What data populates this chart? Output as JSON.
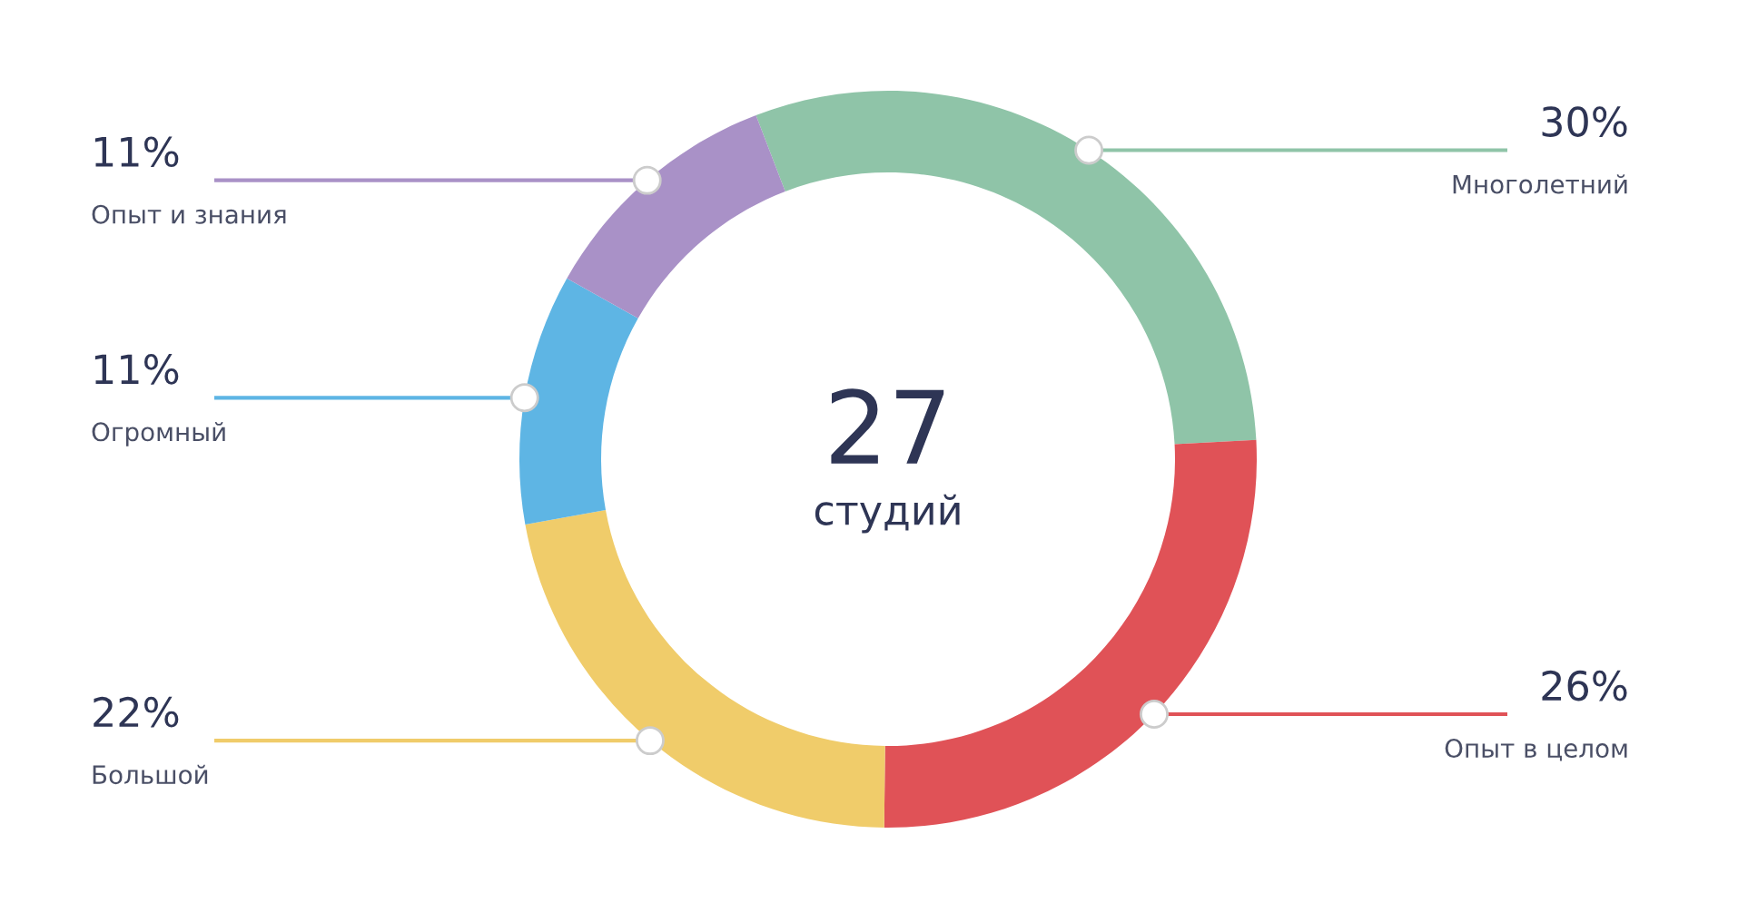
{
  "chart_data": {
    "type": "donut",
    "categories": [
      "Многолетний",
      "Опыт в целом",
      "Большой",
      "Огромный",
      "Опыт и знания"
    ],
    "values": [
      30,
      26,
      22,
      11,
      11
    ],
    "colors": [
      "#8fc4a8",
      "#e05257",
      "#f0cc6a",
      "#5eb5e4",
      "#a991c7"
    ],
    "value_labels": [
      "30%",
      "26%",
      "22%",
      "11%",
      "11%"
    ],
    "annotations": [
      "27",
      "студий"
    ],
    "legend": false
  }
}
